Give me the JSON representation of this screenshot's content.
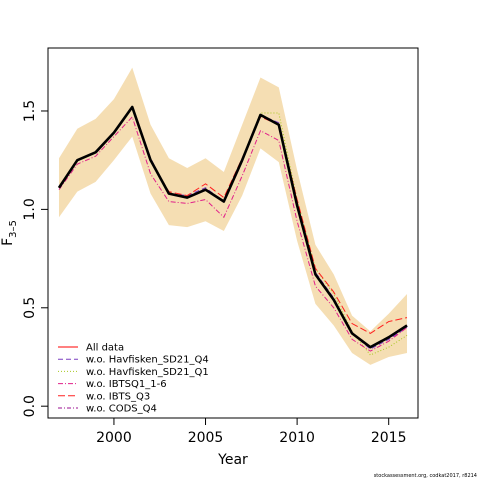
{
  "chart_data": {
    "type": "line",
    "xlabel": "Year",
    "ylabel": "F",
    "ylabel_subscript": "3–5",
    "xlim": [
      1996.4,
      2016.6
    ],
    "ylim": [
      -0.06,
      1.82
    ],
    "x_ticks": [
      2000,
      2005,
      2010,
      2015
    ],
    "y_ticks": [
      0.0,
      0.5,
      1.0,
      1.5
    ],
    "x_tick_labels": [
      "2000",
      "2005",
      "2010",
      "2015"
    ],
    "y_tick_labels": [
      "0.0",
      "0.5",
      "1.0",
      "1.5"
    ],
    "grid": false,
    "legend_position": "bottom-left",
    "band": {
      "color": "#f5deb3",
      "x": [
        1997,
        1998,
        1999,
        2000,
        2001,
        2002,
        2003,
        2004,
        2005,
        2006,
        2007,
        2008,
        2009,
        2010,
        2011,
        2012,
        2013,
        2014,
        2015,
        2016
      ],
      "lower": [
        0.96,
        1.09,
        1.14,
        1.25,
        1.37,
        1.08,
        0.92,
        0.91,
        0.94,
        0.89,
        1.07,
        1.31,
        1.24,
        0.84,
        0.52,
        0.41,
        0.27,
        0.21,
        0.25,
        0.27
      ],
      "upper": [
        1.26,
        1.41,
        1.46,
        1.56,
        1.72,
        1.43,
        1.26,
        1.21,
        1.26,
        1.19,
        1.43,
        1.67,
        1.62,
        1.2,
        0.82,
        0.67,
        0.46,
        0.38,
        0.47,
        0.57
      ]
    },
    "x": [
      1997,
      1998,
      1999,
      2000,
      2001,
      2002,
      2003,
      2004,
      2005,
      2006,
      2007,
      2008,
      2009,
      2010,
      2011,
      2012,
      2013,
      2014,
      2015,
      2016
    ],
    "estimate": [
      1.11,
      1.25,
      1.29,
      1.39,
      1.52,
      1.25,
      1.08,
      1.06,
      1.1,
      1.04,
      1.25,
      1.48,
      1.43,
      1.02,
      0.67,
      0.54,
      0.37,
      0.3,
      0.35,
      0.41
    ],
    "series": [
      {
        "name": "All data",
        "color": "#ff0000",
        "dash": "none",
        "values": [
          1.11,
          1.25,
          1.29,
          1.39,
          1.52,
          1.25,
          1.08,
          1.06,
          1.1,
          1.04,
          1.25,
          1.48,
          1.43,
          1.02,
          0.67,
          0.54,
          0.37,
          0.3,
          0.35,
          0.41
        ]
      },
      {
        "name": "w.o. Havfisken_SD21_Q4",
        "color": "#7a3fc0",
        "dash": "5,3",
        "values": [
          1.11,
          1.25,
          1.29,
          1.39,
          1.52,
          1.26,
          1.08,
          1.07,
          1.11,
          1.04,
          1.25,
          1.48,
          1.44,
          1.02,
          0.68,
          0.55,
          0.37,
          0.29,
          0.34,
          0.4
        ]
      },
      {
        "name": "w.o. Havfisken_SD21_Q1",
        "color": "#a8c820",
        "dash": "1,2",
        "values": [
          1.11,
          1.25,
          1.29,
          1.39,
          1.52,
          1.25,
          1.08,
          1.06,
          1.1,
          1.04,
          1.26,
          1.49,
          1.49,
          1.05,
          0.7,
          0.57,
          0.38,
          0.26,
          0.3,
          0.36
        ]
      },
      {
        "name": "w.o. IBTSQ1_1-6",
        "color": "#e0208a",
        "dash": "5,2,1,2",
        "values": [
          1.1,
          1.23,
          1.27,
          1.37,
          1.47,
          1.18,
          1.04,
          1.03,
          1.05,
          0.96,
          1.17,
          1.4,
          1.35,
          0.94,
          0.61,
          0.5,
          0.34,
          0.28,
          0.33,
          0.4
        ]
      },
      {
        "name": "w.o. IBTS_Q3",
        "color": "#ff2020",
        "dash": "7,3",
        "values": [
          1.11,
          1.25,
          1.29,
          1.39,
          1.52,
          1.25,
          1.09,
          1.07,
          1.13,
          1.06,
          1.26,
          1.47,
          1.43,
          1.05,
          0.7,
          0.58,
          0.42,
          0.37,
          0.43,
          0.45
        ]
      },
      {
        "name": "w.o. CODS_Q4",
        "color": "#9b1090",
        "dash": "4,2,1,2",
        "values": [
          1.11,
          1.25,
          1.29,
          1.39,
          1.52,
          1.25,
          1.08,
          1.06,
          1.1,
          1.04,
          1.25,
          1.48,
          1.43,
          1.02,
          0.67,
          0.54,
          0.37,
          0.3,
          0.35,
          0.41
        ]
      }
    ]
  },
  "credit": "stockassessment.org, codkat2017, r8214"
}
